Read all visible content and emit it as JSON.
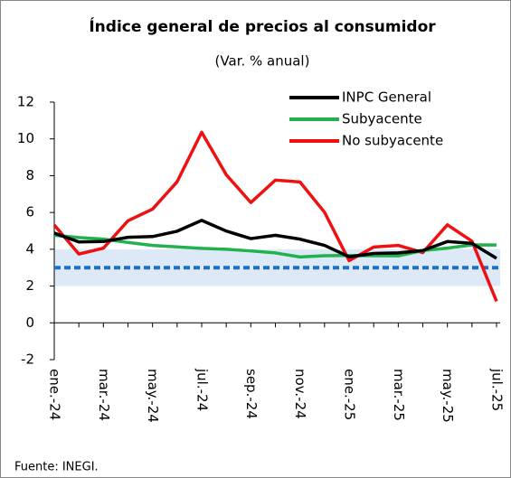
{
  "chart_data": {
    "type": "line",
    "title": "Índice general de precios al consumidor",
    "subtitle": "(Var. % anual)",
    "source": "Fuente: INEGI.",
    "categories": [
      "ene.-24",
      null,
      "mar.-24",
      null,
      "may.-24",
      null,
      "jul.-24",
      null,
      "sep.-24",
      null,
      "nov.-24",
      null,
      "ene.-25",
      null,
      "mar.-25",
      null,
      "may.-25",
      null,
      "jul.-25"
    ],
    "series": [
      {
        "name": "INPC General",
        "color": "#000000",
        "values": [
          4.88,
          4.4,
          4.42,
          4.65,
          4.69,
          4.98,
          5.57,
          4.99,
          4.58,
          4.76,
          4.55,
          4.21,
          3.59,
          3.77,
          3.8,
          3.93,
          4.42,
          4.32,
          3.51
        ]
      },
      {
        "name": "Subyacente",
        "color": "#22b14c",
        "values": [
          4.76,
          4.64,
          4.55,
          4.37,
          4.21,
          4.13,
          4.05,
          4.0,
          3.91,
          3.8,
          3.58,
          3.65,
          3.66,
          3.65,
          3.64,
          3.93,
          4.06,
          4.24,
          4.23
        ]
      },
      {
        "name": "No subyacente",
        "color": "#ee1111",
        "values": [
          5.32,
          3.74,
          4.06,
          5.55,
          6.18,
          7.67,
          10.36,
          8.05,
          6.54,
          7.76,
          7.66,
          6.01,
          3.38,
          4.12,
          4.21,
          3.82,
          5.33,
          4.44,
          1.17
        ]
      }
    ],
    "target": 3,
    "target_color": "#1f6fc5",
    "target_range": [
      2,
      4
    ],
    "target_range_color": "#dde9f7",
    "ylim": [
      -2,
      12
    ],
    "yticks": [
      -2,
      0,
      2,
      4,
      6,
      8,
      10,
      12
    ],
    "legend": "upper right"
  }
}
